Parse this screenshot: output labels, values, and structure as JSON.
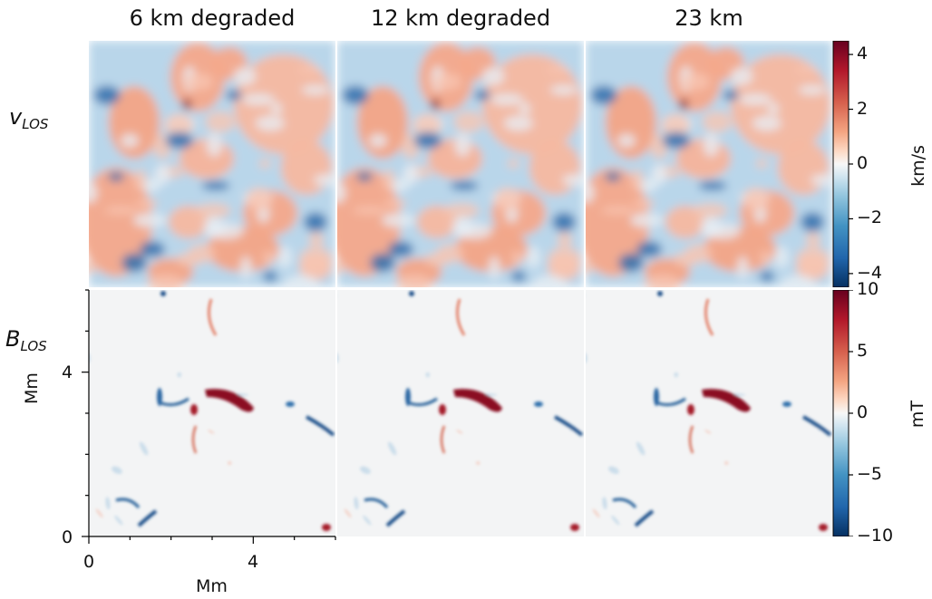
{
  "chart_data": {
    "type": "heatmap",
    "columns": [
      "6 km degraded",
      "12 km degraded",
      "23 km"
    ],
    "rows": [
      {
        "label_base": "v",
        "label_sub": "LOS",
        "colorbar": {
          "label": "km/s",
          "range": [
            -4.5,
            4.5
          ],
          "ticks": [
            4,
            2,
            0,
            -2,
            -4
          ],
          "tick_labels": [
            "4",
            "2",
            "0",
            "−2",
            "−4"
          ],
          "colormap": "RdBu_r"
        }
      },
      {
        "label_base": "B",
        "label_sub": "LOS",
        "colorbar": {
          "label": "mT",
          "range": [
            -10,
            10
          ],
          "ticks": [
            10,
            5,
            0,
            -5,
            -10
          ],
          "tick_labels": [
            "10",
            "5",
            "0",
            "−5",
            "−10"
          ],
          "colormap": "RdBu_r"
        }
      }
    ],
    "x_axis": {
      "label": "Mm",
      "range": [
        0,
        6
      ],
      "ticks": [
        0,
        4
      ],
      "tick_labels": [
        "0",
        "4"
      ]
    },
    "y_axis": {
      "label": "Mm",
      "range": [
        0,
        6
      ],
      "ticks": [
        0,
        4
      ],
      "tick_labels": [
        "0",
        "4"
      ]
    }
  }
}
